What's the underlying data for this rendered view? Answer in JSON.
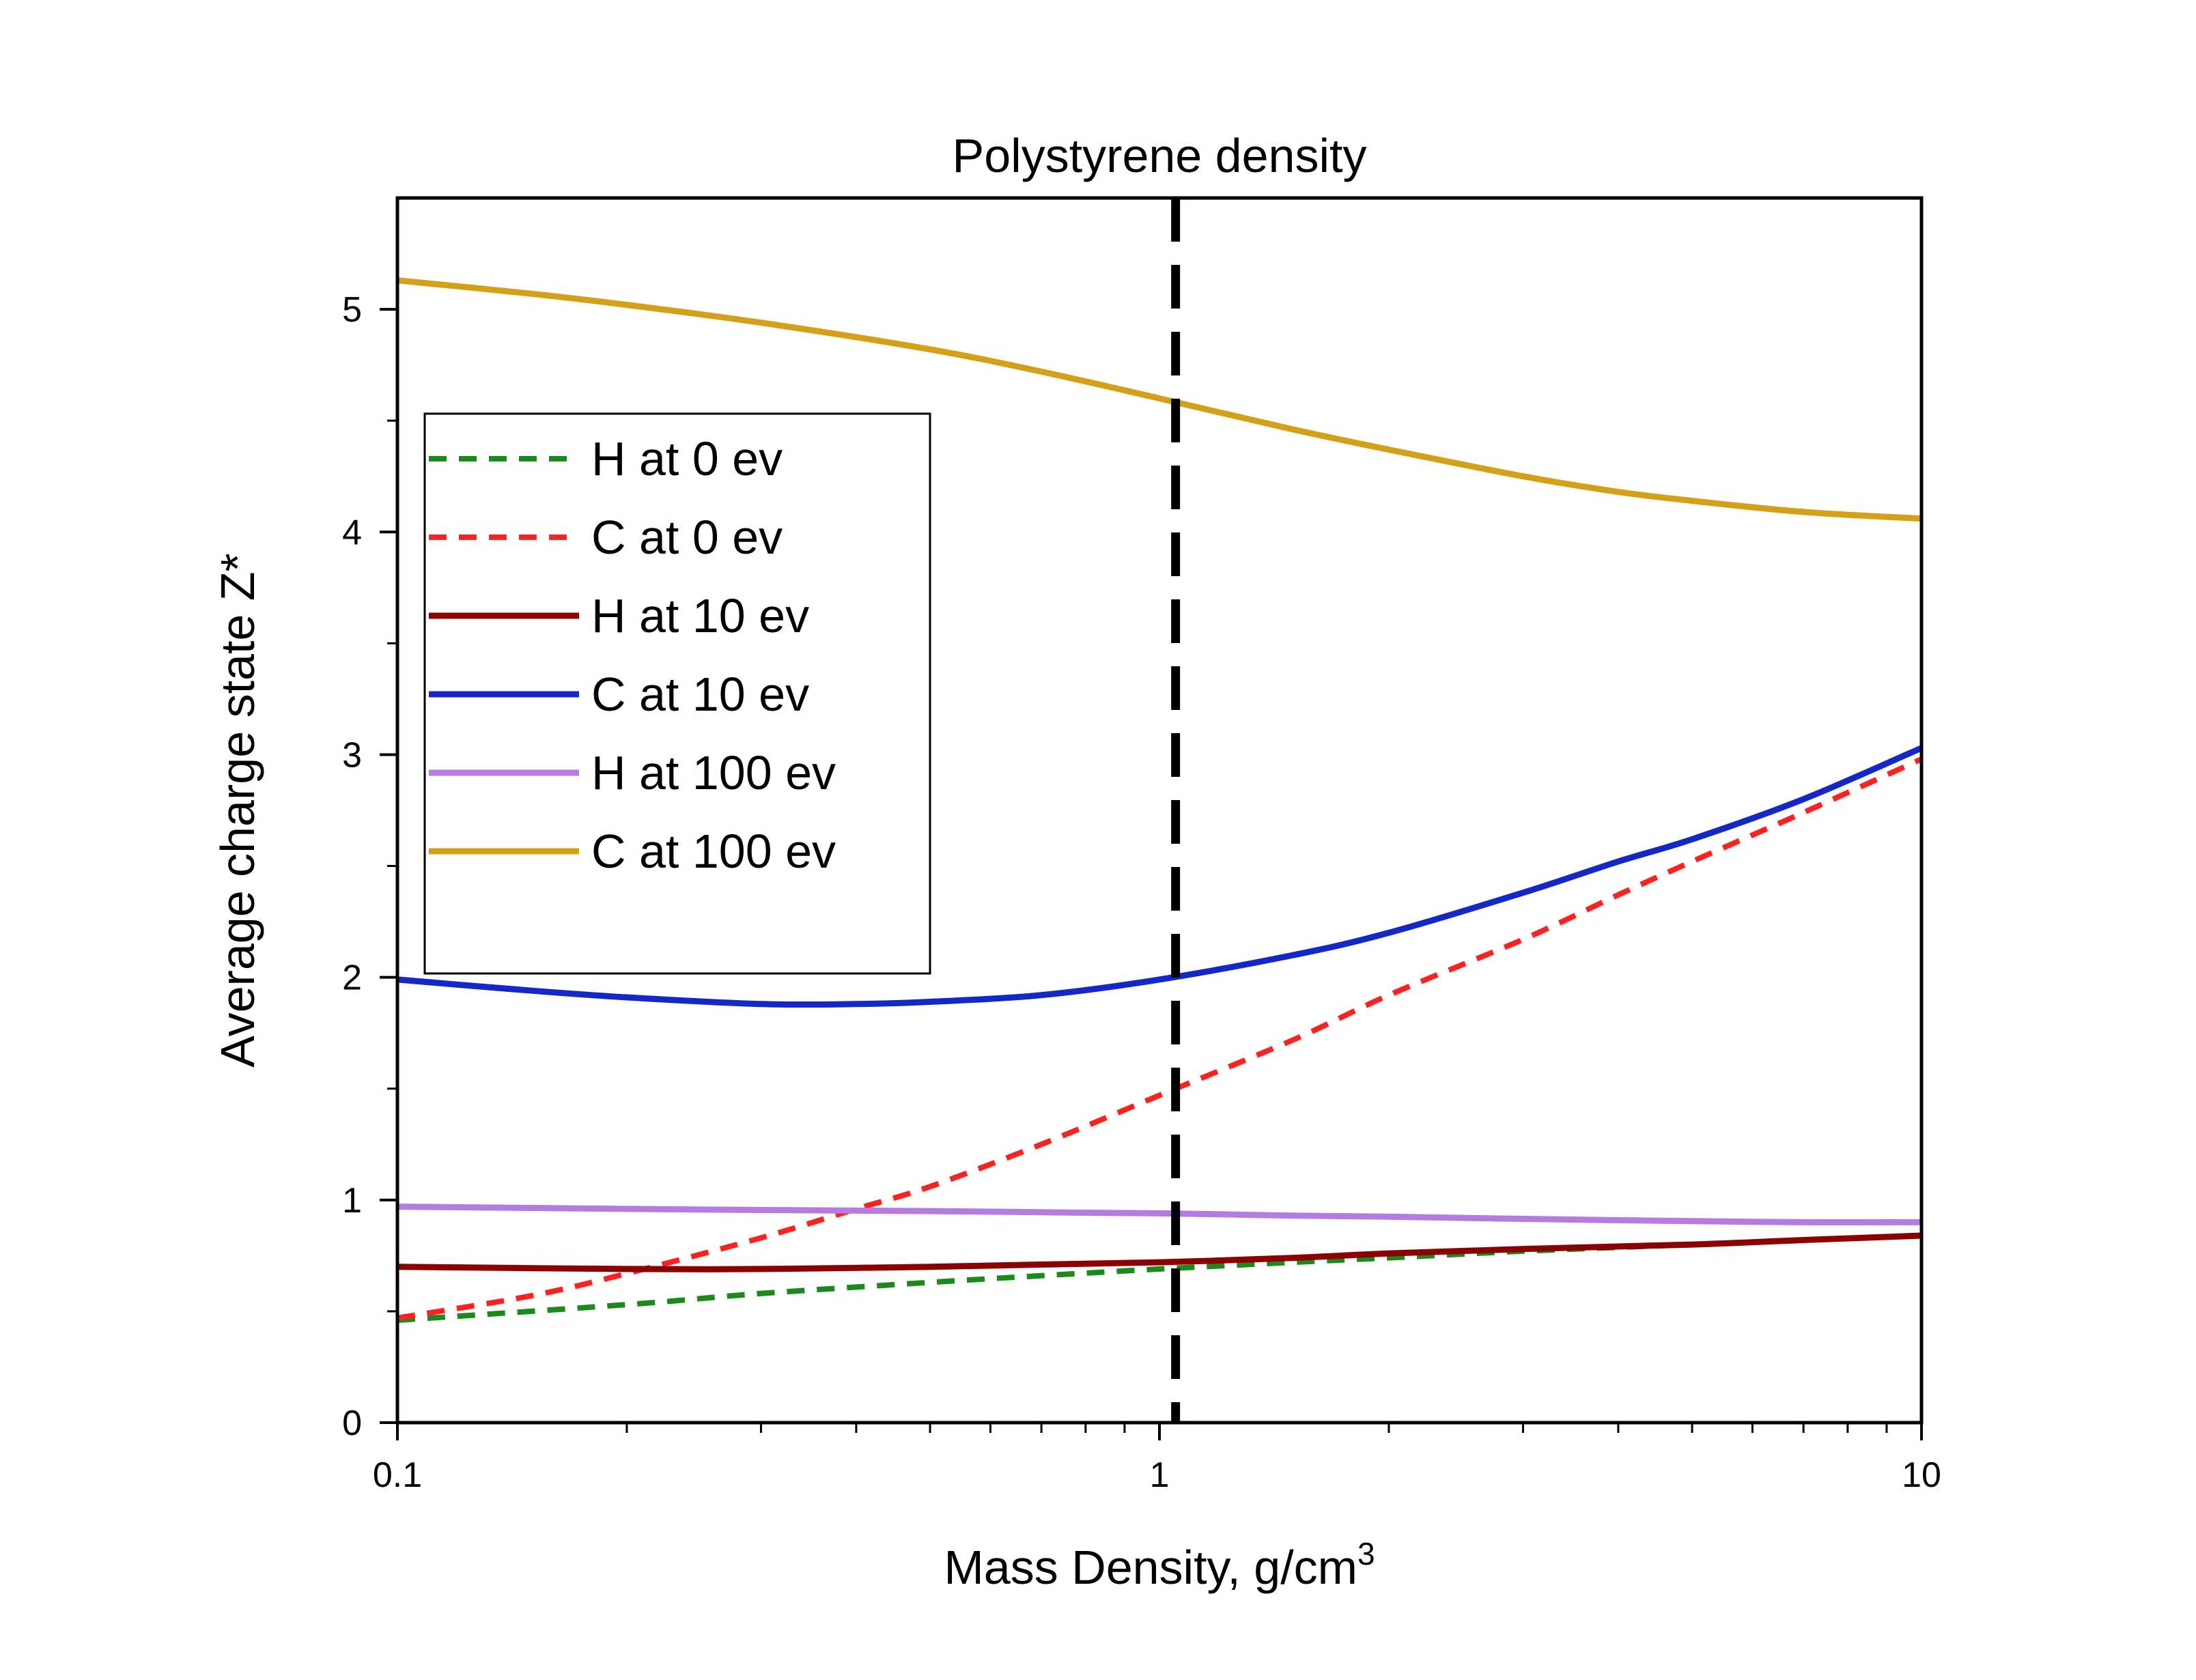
{
  "chart_data": {
    "type": "line",
    "title": "Polystyrene density",
    "xlabel": "Mass Density, g/cm",
    "xlabel_superscript": "3",
    "ylabel": "Average charge state Z*",
    "x_scale": "log",
    "xlim": [
      0.1,
      10
    ],
    "ylim": [
      0,
      5.5
    ],
    "x_ticks": [
      {
        "value": 0.1,
        "label": "0.1"
      },
      {
        "value": 1,
        "label": "1"
      },
      {
        "value": 10,
        "label": "10"
      }
    ],
    "y_ticks": [
      {
        "value": 0,
        "label": "0"
      },
      {
        "value": 1,
        "label": "1"
      },
      {
        "value": 2,
        "label": "2"
      },
      {
        "value": 3,
        "label": "3"
      },
      {
        "value": 4,
        "label": "4"
      },
      {
        "value": 5,
        "label": "5"
      }
    ],
    "grid": false,
    "legend_position": "upper-left",
    "reference_line": {
      "x": 1.05,
      "style": "dashed",
      "color": "#000000"
    },
    "series": [
      {
        "name": "H at 0 ev",
        "color": "#1a8a1a",
        "dash": true,
        "x": [
          0.1,
          0.2,
          0.3,
          0.5,
          0.7,
          1.0,
          1.5,
          2,
          3,
          5,
          7,
          10
        ],
        "y": [
          0.46,
          0.53,
          0.58,
          0.63,
          0.66,
          0.69,
          0.72,
          0.74,
          0.77,
          0.8,
          0.82,
          0.84
        ]
      },
      {
        "name": "C at 0 ev",
        "color": "#ff2020",
        "dash": true,
        "x": [
          0.1,
          0.15,
          0.2,
          0.3,
          0.4,
          0.5,
          0.7,
          1.0,
          1.5,
          2,
          3,
          4,
          5,
          7,
          10
        ],
        "y": [
          0.47,
          0.57,
          0.67,
          0.83,
          0.96,
          1.06,
          1.25,
          1.47,
          1.72,
          1.92,
          2.17,
          2.37,
          2.52,
          2.74,
          2.98
        ]
      },
      {
        "name": "H at 10 ev",
        "color": "#8b0000",
        "dash": false,
        "x": [
          0.1,
          0.2,
          0.3,
          0.5,
          0.7,
          1.0,
          1.5,
          2,
          3,
          5,
          7,
          10
        ],
        "y": [
          0.7,
          0.69,
          0.69,
          0.7,
          0.71,
          0.72,
          0.74,
          0.76,
          0.78,
          0.8,
          0.82,
          0.84
        ]
      },
      {
        "name": "C at 10 ev",
        "color": "#1428c8",
        "dash": false,
        "x": [
          0.1,
          0.15,
          0.2,
          0.3,
          0.4,
          0.5,
          0.7,
          1.0,
          1.5,
          2,
          3,
          4,
          5,
          7,
          10
        ],
        "y": [
          1.99,
          1.94,
          1.91,
          1.88,
          1.88,
          1.89,
          1.92,
          1.99,
          2.1,
          2.2,
          2.38,
          2.52,
          2.62,
          2.8,
          3.03
        ]
      },
      {
        "name": "H at 100 ev",
        "color": "#b57be0",
        "dash": false,
        "x": [
          0.1,
          0.2,
          0.3,
          0.5,
          0.7,
          1.0,
          1.5,
          2,
          3,
          5,
          7,
          10
        ],
        "y": [
          0.97,
          0.96,
          0.955,
          0.95,
          0.945,
          0.94,
          0.93,
          0.925,
          0.915,
          0.905,
          0.9,
          0.9
        ]
      },
      {
        "name": "C at 100 ev",
        "color": "#d4a017",
        "dash": false,
        "x": [
          0.1,
          0.15,
          0.2,
          0.3,
          0.5,
          0.7,
          1.0,
          1.5,
          2,
          3,
          4,
          5,
          7,
          10
        ],
        "y": [
          5.13,
          5.07,
          5.02,
          4.94,
          4.82,
          4.72,
          4.6,
          4.46,
          4.37,
          4.25,
          4.18,
          4.14,
          4.09,
          4.06
        ]
      }
    ]
  }
}
